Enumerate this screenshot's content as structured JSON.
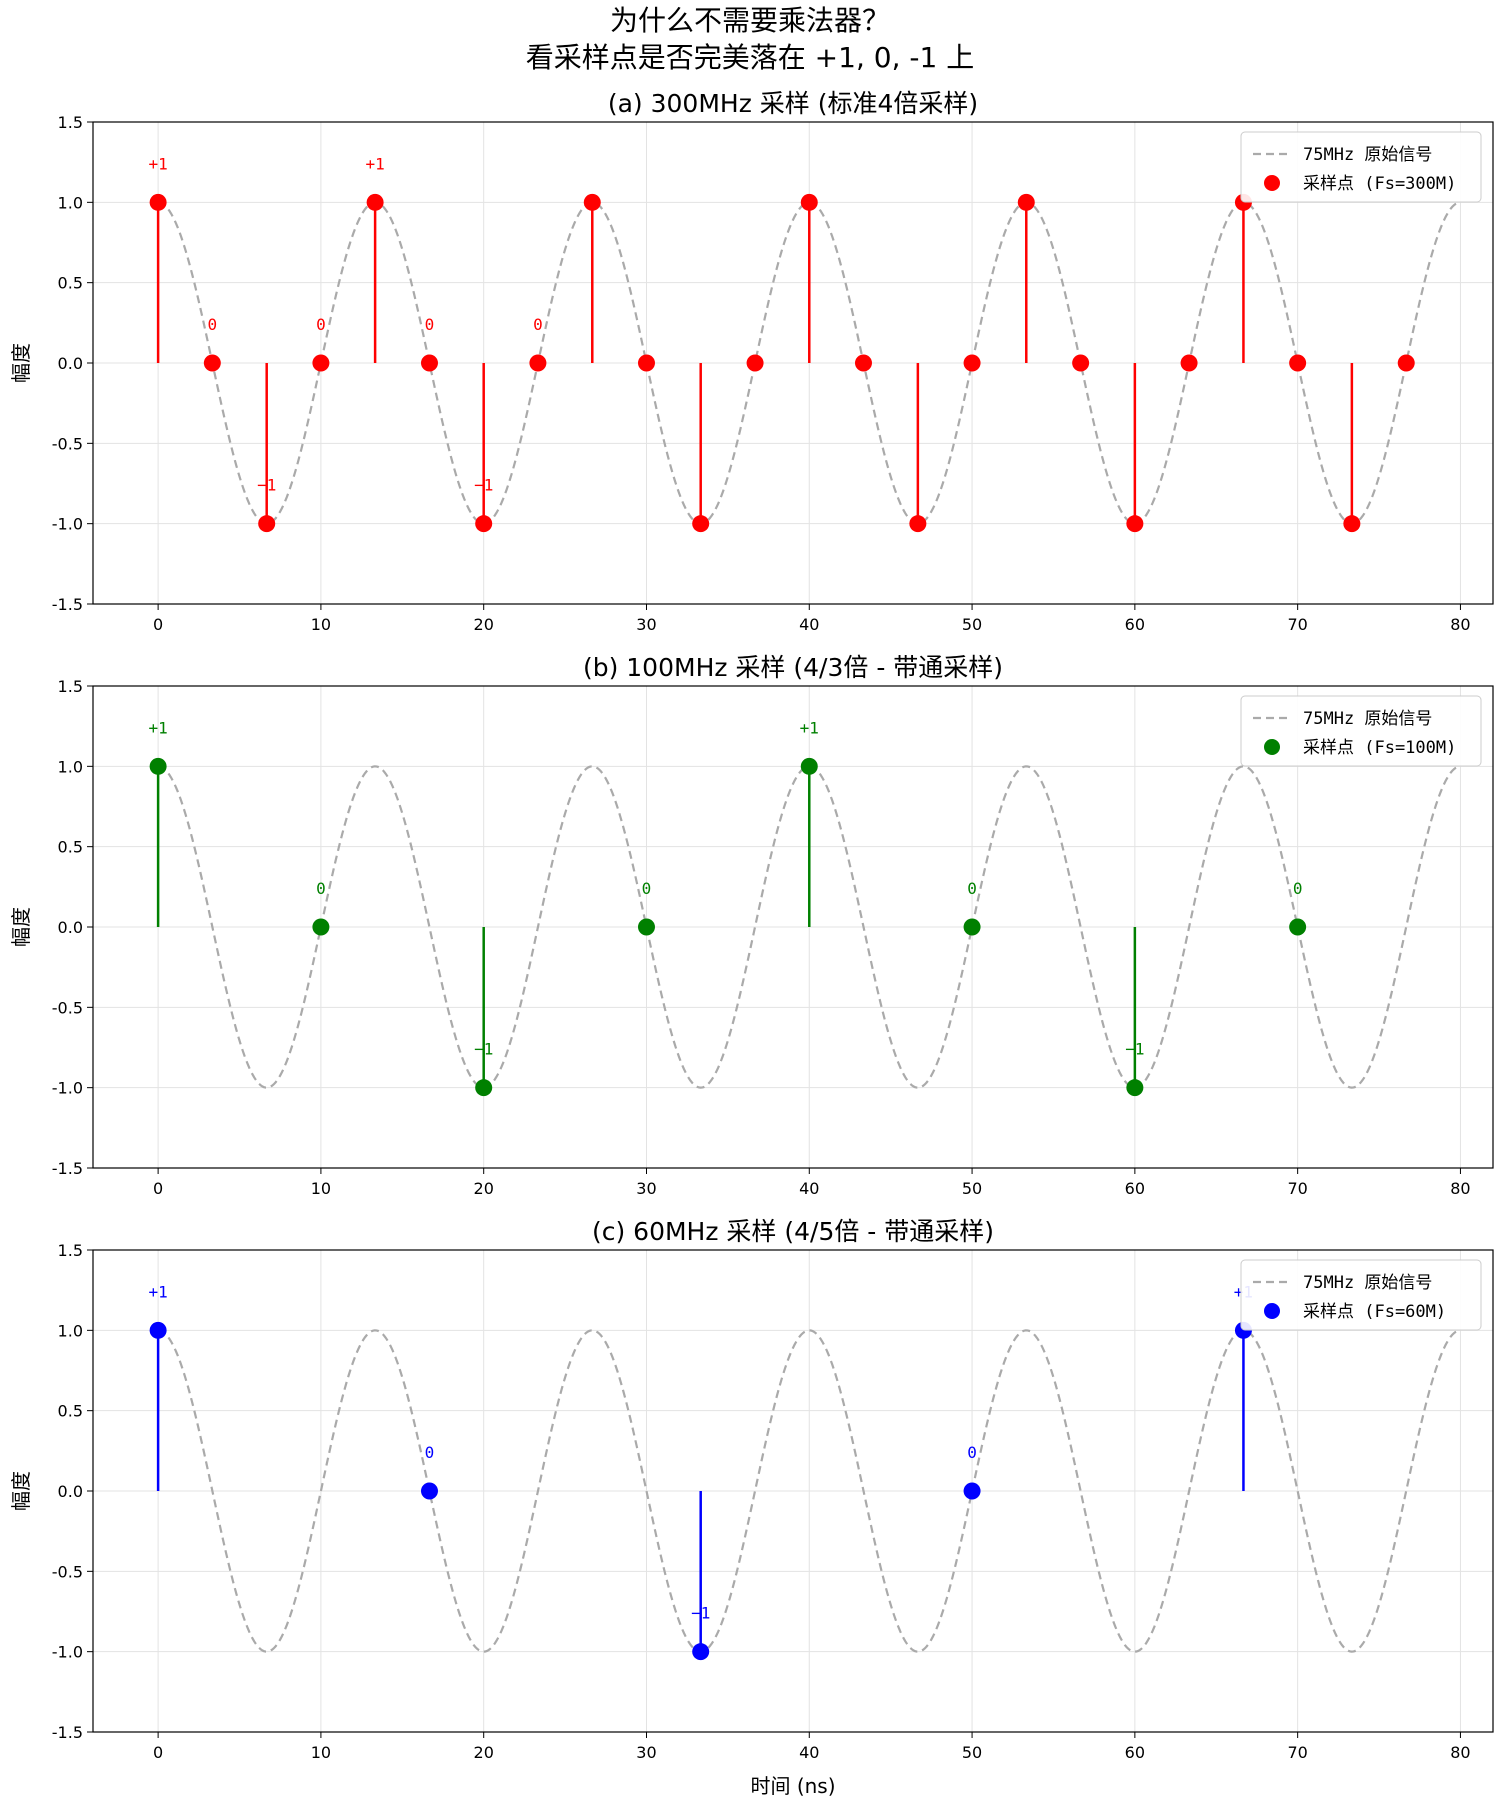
{
  "figure": {
    "title_line1": "为什么不需要乘法器？",
    "title_line2": "看采样点是否完美落在 +1, 0, -1 上",
    "xlabel": "时间 (ns)"
  },
  "chart_data": [
    {
      "type": "line",
      "title": "(a) 300MHz 采样 (标准4倍采样)",
      "ylabel": "幅度",
      "xlim": [
        -4,
        82
      ],
      "ylim": [
        -1.5,
        1.5
      ],
      "xticks": [
        0,
        10,
        20,
        30,
        40,
        50,
        60,
        70,
        80
      ],
      "yticks": [
        -1.5,
        -1.0,
        -0.5,
        0.0,
        0.5,
        1.0,
        1.5
      ],
      "ytick_labels": [
        "-1.5",
        "-1.0",
        "-0.5",
        "0.0",
        "0.5",
        "1.0",
        "1.5"
      ],
      "grid": true,
      "legend_position": "top-right",
      "signal": {
        "name": "75MHz 原始信号",
        "function": "cos",
        "freq_mhz": 75,
        "x_range": [
          0,
          80
        ],
        "color": "#aaaaaa",
        "style": "dashed"
      },
      "samples": {
        "name": "采样点 (Fs=300M)",
        "color": "#ff0000",
        "x": [
          0,
          3.33,
          6.67,
          10,
          13.33,
          16.67,
          20,
          23.33,
          26.67,
          30,
          33.33,
          36.67,
          40,
          43.33,
          46.67,
          50,
          53.33,
          56.67,
          60,
          63.33,
          66.67,
          70,
          73.33,
          76.67
        ],
        "y": [
          1,
          0,
          -1,
          0,
          1,
          0,
          -1,
          0,
          1,
          0,
          -1,
          0,
          1,
          0,
          -1,
          0,
          1,
          0,
          -1,
          0,
          1,
          0,
          -1,
          0
        ]
      },
      "annotations": [
        {
          "x": 0,
          "y": 1,
          "text": "+1"
        },
        {
          "x": 3.33,
          "y": 0,
          "text": "0"
        },
        {
          "x": 6.67,
          "y": -1,
          "text": "−1"
        },
        {
          "x": 10,
          "y": 0,
          "text": "0"
        },
        {
          "x": 13.33,
          "y": 1,
          "text": "+1"
        },
        {
          "x": 16.67,
          "y": 0,
          "text": "0"
        },
        {
          "x": 20,
          "y": -1,
          "text": "−1"
        },
        {
          "x": 23.33,
          "y": 0,
          "text": "0"
        }
      ]
    },
    {
      "type": "line",
      "title": "(b) 100MHz 采样 (4/3倍 - 带通采样)",
      "ylabel": "幅度",
      "xlim": [
        -4,
        82
      ],
      "ylim": [
        -1.5,
        1.5
      ],
      "xticks": [
        0,
        10,
        20,
        30,
        40,
        50,
        60,
        70,
        80
      ],
      "yticks": [
        -1.5,
        -1.0,
        -0.5,
        0.0,
        0.5,
        1.0,
        1.5
      ],
      "ytick_labels": [
        "-1.5",
        "-1.0",
        "-0.5",
        "0.0",
        "0.5",
        "1.0",
        "1.5"
      ],
      "grid": true,
      "legend_position": "top-right",
      "signal": {
        "name": "75MHz 原始信号",
        "function": "cos",
        "freq_mhz": 75,
        "x_range": [
          0,
          80
        ],
        "color": "#aaaaaa",
        "style": "dashed"
      },
      "samples": {
        "name": "采样点 (Fs=100M)",
        "color": "#008000",
        "x": [
          0,
          10,
          20,
          30,
          40,
          50,
          60,
          70
        ],
        "y": [
          1,
          0,
          -1,
          0,
          1,
          0,
          -1,
          0
        ]
      },
      "annotations": [
        {
          "x": 0,
          "y": 1,
          "text": "+1"
        },
        {
          "x": 10,
          "y": 0,
          "text": "0"
        },
        {
          "x": 20,
          "y": -1,
          "text": "−1"
        },
        {
          "x": 30,
          "y": 0,
          "text": "0"
        },
        {
          "x": 40,
          "y": 1,
          "text": "+1"
        },
        {
          "x": 50,
          "y": 0,
          "text": "0"
        },
        {
          "x": 60,
          "y": -1,
          "text": "−1"
        },
        {
          "x": 70,
          "y": 0,
          "text": "0"
        }
      ]
    },
    {
      "type": "line",
      "title": "(c) 60MHz 采样 (4/5倍 - 带通采样)",
      "ylabel": "幅度",
      "xlim": [
        -4,
        82
      ],
      "ylim": [
        -1.5,
        1.5
      ],
      "xticks": [
        0,
        10,
        20,
        30,
        40,
        50,
        60,
        70,
        80
      ],
      "yticks": [
        -1.5,
        -1.0,
        -0.5,
        0.0,
        0.5,
        1.0,
        1.5
      ],
      "ytick_labels": [
        "-1.5",
        "-1.0",
        "-0.5",
        "0.0",
        "0.5",
        "1.0",
        "1.5"
      ],
      "grid": true,
      "legend_position": "top-right",
      "signal": {
        "name": "75MHz 原始信号",
        "function": "cos",
        "freq_mhz": 75,
        "x_range": [
          0,
          80
        ],
        "color": "#aaaaaa",
        "style": "dashed"
      },
      "samples": {
        "name": "采样点 (Fs=60M)",
        "color": "#0000ff",
        "x": [
          0,
          16.67,
          33.33,
          50,
          66.67
        ],
        "y": [
          1,
          0,
          -1,
          0,
          1
        ]
      },
      "annotations": [
        {
          "x": 0,
          "y": 1,
          "text": "+1"
        },
        {
          "x": 16.67,
          "y": 0,
          "text": "0"
        },
        {
          "x": 33.33,
          "y": -1,
          "text": "−1"
        },
        {
          "x": 50,
          "y": 0,
          "text": "0"
        },
        {
          "x": 66.67,
          "y": 1,
          "text": "+1"
        }
      ]
    }
  ]
}
